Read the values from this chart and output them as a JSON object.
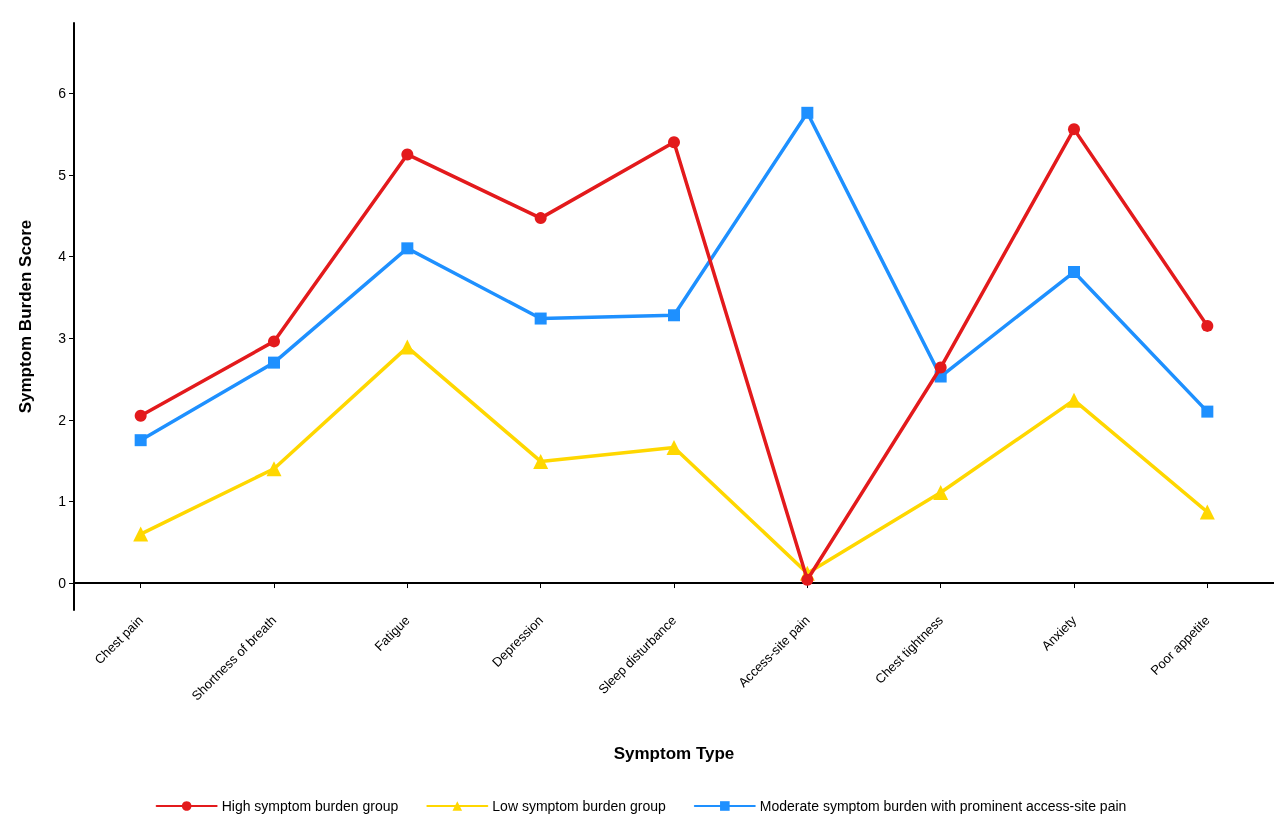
{
  "chart_data": {
    "type": "line",
    "xlabel": "Symptom Type",
    "ylabel": "Symptom Burden Score",
    "categories": [
      "Chest pain",
      "Shortness of breath",
      "Fatigue",
      "Depression",
      "Sleep disturbance",
      "Access-site pain",
      "Chest tightness",
      "Anxiety",
      "Poor appetite"
    ],
    "series": [
      {
        "name": "High symptom burden group",
        "color": "#e31a1c",
        "marker": "circle",
        "values": [
          2.05,
          2.96,
          5.25,
          4.47,
          5.4,
          0.04,
          2.64,
          5.56,
          3.15
        ]
      },
      {
        "name": "Low symptom burden group",
        "color": "#ffd700",
        "marker": "triangle",
        "values": [
          0.6,
          1.4,
          2.89,
          1.49,
          1.66,
          0.12,
          1.11,
          2.24,
          0.87
        ]
      },
      {
        "name": "Moderate symptom burden with prominent access-site pain",
        "color": "#1e90ff",
        "marker": "square",
        "values": [
          1.75,
          2.7,
          4.1,
          3.24,
          3.28,
          5.76,
          2.53,
          3.81,
          2.1
        ]
      }
    ],
    "ylim": [
      -0.33,
      6.86
    ],
    "yticks": [
      0,
      1,
      2,
      3,
      4,
      5,
      6
    ],
    "grid": false,
    "legend": "bottom",
    "line_style": "solid"
  }
}
